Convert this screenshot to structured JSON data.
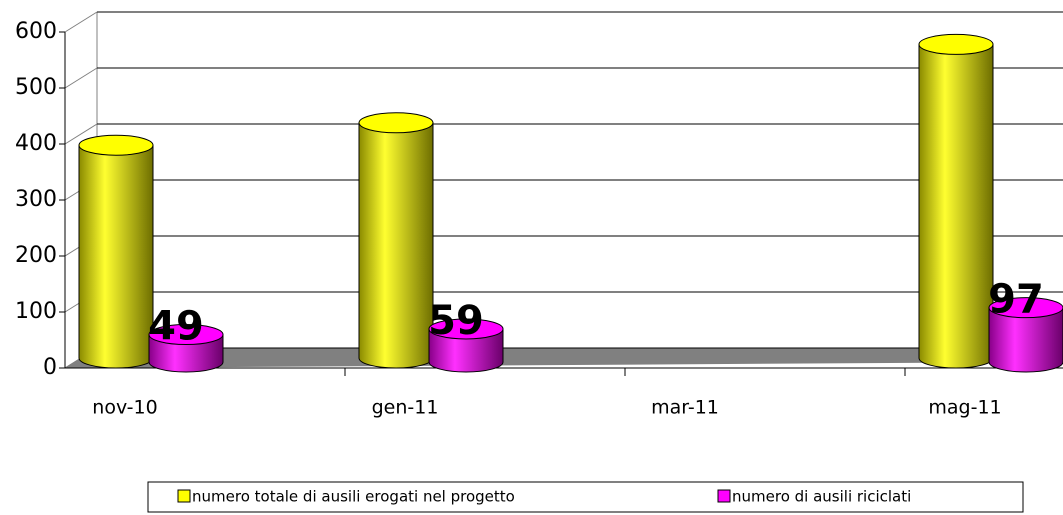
{
  "chart_data": {
    "type": "bar3d",
    "categories": [
      "nov-10",
      "gen-11",
      "mar-11",
      "mag-11"
    ],
    "series": [
      {
        "name": "numero totale di ausili erogati nel progetto",
        "color": "#ffff00",
        "values": [
          380,
          420,
          null,
          560
        ]
      },
      {
        "name": "numero di ausili riciclati",
        "color": "#ff00ff",
        "values": [
          49,
          59,
          null,
          97
        ],
        "data_labels": true
      }
    ],
    "ylim": [
      0,
      600
    ],
    "yticks": [
      0,
      100,
      200,
      300,
      400,
      500,
      600
    ],
    "grid": true,
    "legend": "bottom"
  }
}
